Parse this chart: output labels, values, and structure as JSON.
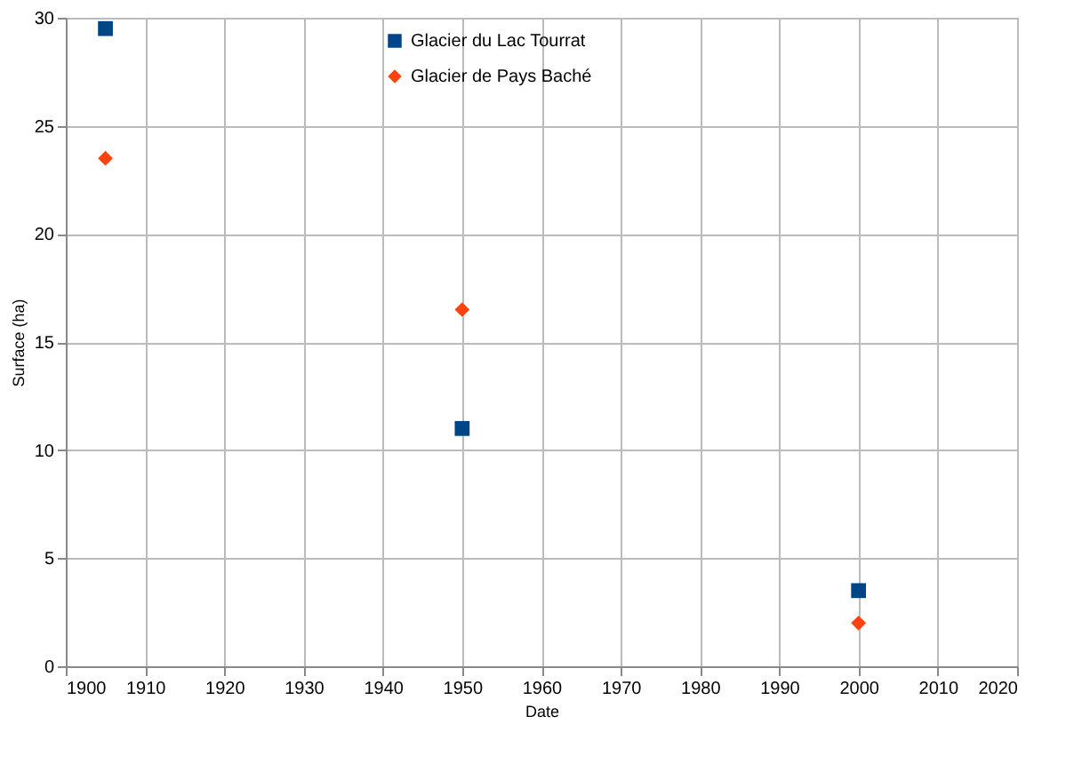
{
  "chart_data": {
    "type": "scatter",
    "xlabel": "Date",
    "ylabel": "Surface (ha)",
    "xlim": [
      1900,
      2020
    ],
    "xticks": [
      1900,
      1910,
      1920,
      1930,
      1940,
      1950,
      1960,
      1970,
      1980,
      1990,
      2000,
      2010,
      2020
    ],
    "ylim": [
      0,
      30
    ],
    "yticks": [
      0,
      5,
      10,
      15,
      20,
      25,
      30
    ],
    "grid": true,
    "legend": "top",
    "series": [
      {
        "name": "Glacier du Lac Tourrat",
        "color": "#004586",
        "marker": "square",
        "x": [
          1905,
          1950,
          2000
        ],
        "values": [
          29.5,
          11,
          3.5
        ]
      },
      {
        "name": "Glacier de Pays Baché",
        "color": "#ff420e",
        "marker": "diamond",
        "x": [
          1905,
          1950,
          2000
        ],
        "values": [
          23.5,
          16.5,
          2
        ]
      }
    ]
  }
}
